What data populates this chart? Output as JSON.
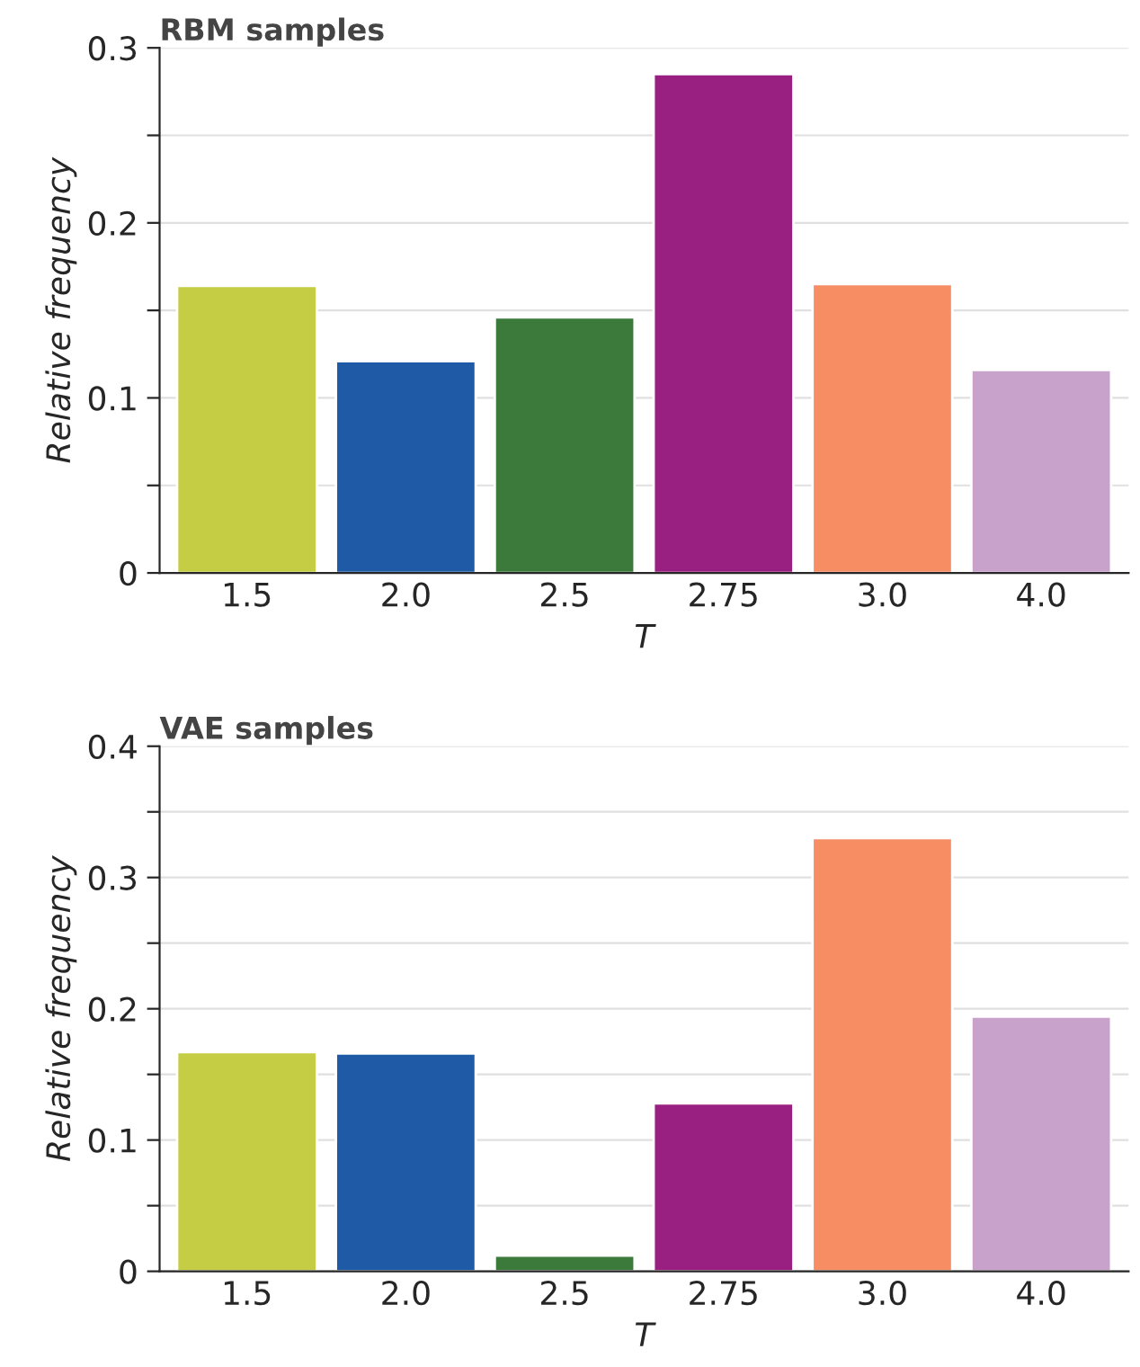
{
  "chart_data": [
    {
      "type": "bar",
      "title": "RBM samples",
      "xlabel": "T",
      "ylabel": "Relative frequency",
      "categories": [
        "1.5",
        "2.0",
        "2.5",
        "2.75",
        "3.0",
        "4.0"
      ],
      "values": [
        0.164,
        0.121,
        0.146,
        0.285,
        0.165,
        0.116
      ],
      "colors": [
        "#c5cd44",
        "#1f5aa6",
        "#3b7a3a",
        "#992080",
        "#f68d63",
        "#c9a2cc"
      ],
      "ylim": [
        0,
        0.3
      ],
      "yticks": [
        0,
        {
          "value": 0.05,
          "label": null
        },
        0.1,
        {
          "value": 0.15,
          "label": null
        },
        0.2,
        {
          "value": 0.25,
          "label": null
        },
        0.3
      ],
      "grid": "y",
      "legend": false
    },
    {
      "type": "bar",
      "title": "VAE samples",
      "xlabel": "T",
      "ylabel": "Relative frequency",
      "categories": [
        "1.5",
        "2.0",
        "2.5",
        "2.75",
        "3.0",
        "4.0"
      ],
      "values": [
        0.167,
        0.166,
        0.012,
        0.128,
        0.33,
        0.194
      ],
      "colors": [
        "#c5cd44",
        "#1f5aa6",
        "#3b7a3a",
        "#992080",
        "#f68d63",
        "#c9a2cc"
      ],
      "ylim": [
        0,
        0.4
      ],
      "yticks": [
        0,
        {
          "value": 0.05,
          "label": null
        },
        0.1,
        {
          "value": 0.15,
          "label": null
        },
        0.2,
        {
          "value": 0.25,
          "label": null
        },
        0.3,
        {
          "value": 0.35,
          "label": null
        },
        0.4
      ],
      "grid": "y",
      "legend": false
    }
  ]
}
